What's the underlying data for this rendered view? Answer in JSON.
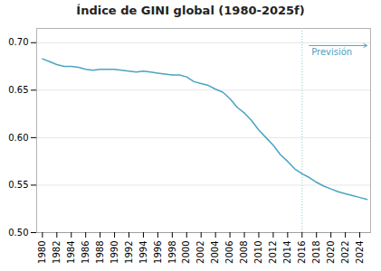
{
  "chart_data": {
    "type": "line",
    "title": "Índice de GINI global (1980-2025f)",
    "x": [
      1980,
      1981,
      1982,
      1983,
      1984,
      1985,
      1986,
      1987,
      1988,
      1989,
      1990,
      1991,
      1992,
      1993,
      1994,
      1995,
      1996,
      1997,
      1998,
      1999,
      2000,
      2001,
      2002,
      2003,
      2004,
      2005,
      2006,
      2007,
      2008,
      2009,
      2010,
      2011,
      2012,
      2013,
      2014,
      2015,
      2016,
      2017,
      2018,
      2019,
      2020,
      2021,
      2022,
      2023,
      2024,
      2025
    ],
    "values": [
      0.683,
      0.68,
      0.677,
      0.675,
      0.675,
      0.674,
      0.672,
      0.671,
      0.672,
      0.672,
      0.672,
      0.671,
      0.67,
      0.669,
      0.67,
      0.669,
      0.668,
      0.667,
      0.666,
      0.666,
      0.664,
      0.659,
      0.657,
      0.655,
      0.651,
      0.648,
      0.641,
      0.632,
      0.626,
      0.618,
      0.608,
      0.6,
      0.592,
      0.582,
      0.575,
      0.567,
      0.562,
      0.558,
      0.553,
      0.549,
      0.546,
      0.543,
      0.541,
      0.539,
      0.537,
      0.535
    ],
    "color": "#4ba3c3",
    "xlim": [
      1979.2,
      2025.5
    ],
    "xticks": [
      1980,
      1982,
      1984,
      1986,
      1988,
      1990,
      1992,
      1994,
      1996,
      1998,
      2000,
      2002,
      2004,
      2006,
      2008,
      2010,
      2012,
      2014,
      2016,
      2018,
      2020,
      2022,
      2024
    ],
    "ylim": [
      0.5,
      0.715
    ],
    "yticks": [
      {
        "value": 0.5,
        "label": "0.50"
      },
      0.55,
      {
        "value": 0.6,
        "label": "0.60"
      },
      0.65,
      {
        "value": 0.7,
        "label": "0.70"
      }
    ],
    "grid": true,
    "vline": {
      "x": 2016,
      "color": "#8ec8dc",
      "line_style": "dotted"
    },
    "annotations": [
      {
        "text": "Previsión",
        "x": 2017.3,
        "y": 0.694,
        "color": "#4ba3c3",
        "arrow_from": [
          2017.0,
          0.697
        ],
        "arrow_to": [
          2025,
          0.697
        ]
      }
    ]
  }
}
